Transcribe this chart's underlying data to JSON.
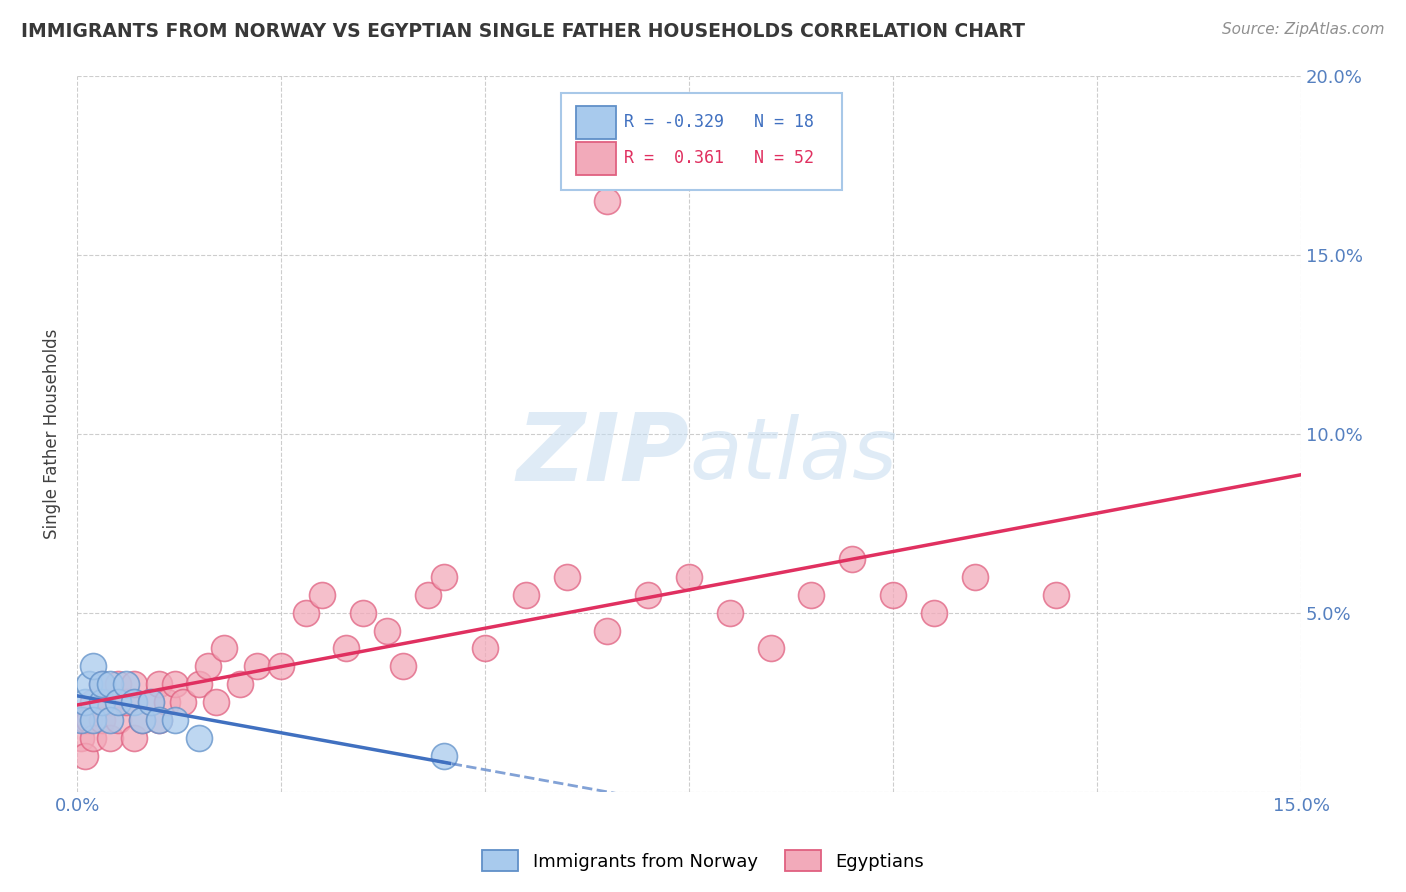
{
  "title": "IMMIGRANTS FROM NORWAY VS EGYPTIAN SINGLE FATHER HOUSEHOLDS CORRELATION CHART",
  "source": "Source: ZipAtlas.com",
  "ylabel": "Single Father Households",
  "xlim": [
    0.0,
    0.15
  ],
  "ylim": [
    0.0,
    0.2
  ],
  "legend_blue_r": "-0.329",
  "legend_blue_n": "18",
  "legend_pink_r": "0.361",
  "legend_pink_n": "52",
  "blue_color": "#A8CAED",
  "pink_color": "#F2AABA",
  "blue_edge_color": "#6090C8",
  "pink_edge_color": "#E06080",
  "blue_line_color": "#4070C0",
  "pink_line_color": "#E03060",
  "norway_x": [
    0.0005,
    0.001,
    0.0015,
    0.002,
    0.002,
    0.003,
    0.003,
    0.004,
    0.004,
    0.005,
    0.006,
    0.007,
    0.008,
    0.009,
    0.01,
    0.012,
    0.015,
    0.045
  ],
  "norway_y": [
    0.02,
    0.025,
    0.03,
    0.02,
    0.035,
    0.025,
    0.03,
    0.02,
    0.03,
    0.025,
    0.03,
    0.025,
    0.02,
    0.025,
    0.02,
    0.02,
    0.015,
    0.01
  ],
  "egypt_x": [
    0.0005,
    0.001,
    0.001,
    0.0015,
    0.002,
    0.002,
    0.003,
    0.003,
    0.004,
    0.004,
    0.005,
    0.005,
    0.006,
    0.007,
    0.007,
    0.008,
    0.009,
    0.01,
    0.01,
    0.011,
    0.012,
    0.013,
    0.015,
    0.016,
    0.017,
    0.018,
    0.02,
    0.022,
    0.025,
    0.028,
    0.03,
    0.033,
    0.035,
    0.038,
    0.04,
    0.043,
    0.045,
    0.05,
    0.055,
    0.06,
    0.065,
    0.07,
    0.075,
    0.08,
    0.085,
    0.09,
    0.095,
    0.1,
    0.105,
    0.11,
    0.12,
    0.065
  ],
  "egypt_y": [
    0.015,
    0.02,
    0.01,
    0.02,
    0.015,
    0.025,
    0.02,
    0.03,
    0.015,
    0.025,
    0.02,
    0.03,
    0.025,
    0.015,
    0.03,
    0.02,
    0.025,
    0.02,
    0.03,
    0.025,
    0.03,
    0.025,
    0.03,
    0.035,
    0.025,
    0.04,
    0.03,
    0.035,
    0.035,
    0.05,
    0.055,
    0.04,
    0.05,
    0.045,
    0.035,
    0.055,
    0.06,
    0.04,
    0.055,
    0.06,
    0.045,
    0.055,
    0.06,
    0.05,
    0.04,
    0.055,
    0.065,
    0.055,
    0.05,
    0.06,
    0.055,
    0.165
  ]
}
